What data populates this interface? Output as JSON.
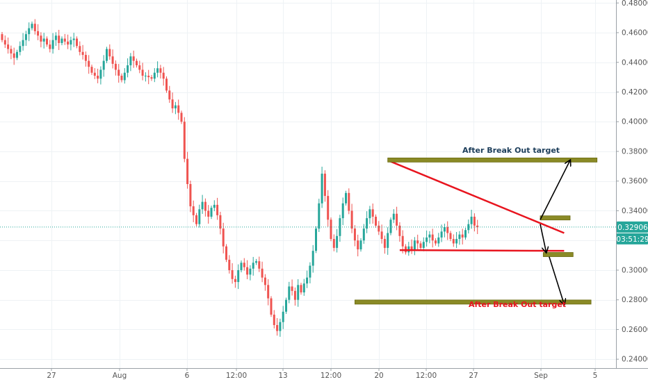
{
  "chart_data": {
    "type": "candlestick",
    "title": "",
    "xlabel": "",
    "ylabel": "",
    "ylim": [
      0.234,
      0.482
    ],
    "x_ticks": [
      "27",
      "Aug",
      "6",
      "12:00",
      "13",
      "12:00",
      "20",
      "12:00",
      "27",
      "Sep",
      "5"
    ],
    "y_ticks": [
      "0.48000",
      "0.46000",
      "0.44000",
      "0.42000",
      "0.40000",
      "0.38000",
      "0.36000",
      "0.34000",
      "0.32000",
      "0.30000",
      "0.28000",
      "0.26000",
      "0.24000"
    ],
    "current_price": {
      "value": 0.32906,
      "label": "0.32906",
      "countdown": "03:51:29"
    },
    "candles": [
      [
        0.459,
        0.455
      ],
      [
        0.455,
        0.452
      ],
      [
        0.452,
        0.449
      ],
      [
        0.449,
        0.446
      ],
      [
        0.446,
        0.443
      ],
      [
        0.443,
        0.447
      ],
      [
        0.447,
        0.451
      ],
      [
        0.451,
        0.455
      ],
      [
        0.455,
        0.459
      ],
      [
        0.459,
        0.463
      ],
      [
        0.463,
        0.466
      ],
      [
        0.466,
        0.461
      ],
      [
        0.461,
        0.458
      ],
      [
        0.458,
        0.454
      ],
      [
        0.454,
        0.456
      ],
      [
        0.456,
        0.452
      ],
      [
        0.452,
        0.449
      ],
      [
        0.449,
        0.455
      ],
      [
        0.455,
        0.458
      ],
      [
        0.458,
        0.453
      ],
      [
        0.453,
        0.456
      ],
      [
        0.456,
        0.454
      ],
      [
        0.454,
        0.452
      ],
      [
        0.452,
        0.455
      ],
      [
        0.455,
        0.456
      ],
      [
        0.456,
        0.451
      ],
      [
        0.451,
        0.447
      ],
      [
        0.447,
        0.445
      ],
      [
        0.445,
        0.441
      ],
      [
        0.441,
        0.437
      ],
      [
        0.437,
        0.433
      ],
      [
        0.433,
        0.431
      ],
      [
        0.431,
        0.429
      ],
      [
        0.429,
        0.435
      ],
      [
        0.435,
        0.441
      ],
      [
        0.441,
        0.449
      ],
      [
        0.449,
        0.444
      ],
      [
        0.444,
        0.439
      ],
      [
        0.439,
        0.435
      ],
      [
        0.435,
        0.431
      ],
      [
        0.431,
        0.428
      ],
      [
        0.428,
        0.433
      ],
      [
        0.433,
        0.438
      ],
      [
        0.438,
        0.444
      ],
      [
        0.444,
        0.441
      ],
      [
        0.441,
        0.438
      ],
      [
        0.438,
        0.435
      ],
      [
        0.435,
        0.431
      ],
      [
        0.431,
        0.431
      ],
      [
        0.431,
        0.43
      ],
      [
        0.43,
        0.429
      ],
      [
        0.429,
        0.433
      ],
      [
        0.433,
        0.436
      ],
      [
        0.436,
        0.433
      ],
      [
        0.433,
        0.429
      ],
      [
        0.429,
        0.421
      ],
      [
        0.421,
        0.415
      ],
      [
        0.415,
        0.409
      ],
      [
        0.409,
        0.411
      ],
      [
        0.411,
        0.406
      ],
      [
        0.406,
        0.4
      ],
      [
        0.4,
        0.375
      ],
      [
        0.375,
        0.358
      ],
      [
        0.358,
        0.343
      ],
      [
        0.343,
        0.337
      ],
      [
        0.337,
        0.331
      ],
      [
        0.331,
        0.341
      ],
      [
        0.341,
        0.346
      ],
      [
        0.346,
        0.34
      ],
      [
        0.34,
        0.336
      ],
      [
        0.336,
        0.342
      ],
      [
        0.342,
        0.344
      ],
      [
        0.344,
        0.337
      ],
      [
        0.337,
        0.328
      ],
      [
        0.328,
        0.316
      ],
      [
        0.316,
        0.307
      ],
      [
        0.307,
        0.3
      ],
      [
        0.3,
        0.294
      ],
      [
        0.294,
        0.292
      ],
      [
        0.292,
        0.3
      ],
      [
        0.3,
        0.305
      ],
      [
        0.305,
        0.302
      ],
      [
        0.302,
        0.297
      ],
      [
        0.297,
        0.301
      ],
      [
        0.301,
        0.305
      ],
      [
        0.305,
        0.306
      ],
      [
        0.306,
        0.301
      ],
      [
        0.301,
        0.295
      ],
      [
        0.295,
        0.29
      ],
      [
        0.29,
        0.281
      ],
      [
        0.281,
        0.27
      ],
      [
        0.27,
        0.263
      ],
      [
        0.263,
        0.259
      ],
      [
        0.259,
        0.265
      ],
      [
        0.265,
        0.272
      ],
      [
        0.272,
        0.28
      ],
      [
        0.28,
        0.289
      ],
      [
        0.289,
        0.286
      ],
      [
        0.286,
        0.28
      ],
      [
        0.28,
        0.29
      ],
      [
        0.29,
        0.285
      ],
      [
        0.285,
        0.291
      ],
      [
        0.291,
        0.295
      ],
      [
        0.295,
        0.303
      ],
      [
        0.303,
        0.313
      ],
      [
        0.313,
        0.328
      ],
      [
        0.328,
        0.345
      ],
      [
        0.345,
        0.365
      ],
      [
        0.365,
        0.35
      ],
      [
        0.35,
        0.334
      ],
      [
        0.334,
        0.321
      ],
      [
        0.321,
        0.315
      ],
      [
        0.315,
        0.323
      ],
      [
        0.323,
        0.335
      ],
      [
        0.335,
        0.345
      ],
      [
        0.345,
        0.352
      ],
      [
        0.352,
        0.34
      ],
      [
        0.34,
        0.328
      ],
      [
        0.328,
        0.32
      ],
      [
        0.32,
        0.314
      ],
      [
        0.314,
        0.32
      ],
      [
        0.32,
        0.328
      ],
      [
        0.328,
        0.335
      ],
      [
        0.335,
        0.341
      ],
      [
        0.341,
        0.336
      ],
      [
        0.336,
        0.33
      ],
      [
        0.33,
        0.326
      ],
      [
        0.326,
        0.321
      ],
      [
        0.321,
        0.315
      ],
      [
        0.315,
        0.325
      ],
      [
        0.325,
        0.334
      ],
      [
        0.334,
        0.338
      ],
      [
        0.338,
        0.33
      ],
      [
        0.33,
        0.323
      ],
      [
        0.323,
        0.316
      ],
      [
        0.316,
        0.312
      ],
      [
        0.312,
        0.316
      ],
      [
        0.316,
        0.314
      ],
      [
        0.314,
        0.32
      ],
      [
        0.32,
        0.318
      ],
      [
        0.318,
        0.315
      ],
      [
        0.315,
        0.319
      ],
      [
        0.319,
        0.322
      ],
      [
        0.322,
        0.324
      ],
      [
        0.324,
        0.32
      ],
      [
        0.32,
        0.318
      ],
      [
        0.318,
        0.322
      ],
      [
        0.322,
        0.326
      ],
      [
        0.326,
        0.329
      ],
      [
        0.329,
        0.325
      ],
      [
        0.325,
        0.321
      ],
      [
        0.321,
        0.318
      ],
      [
        0.318,
        0.321
      ],
      [
        0.321,
        0.324
      ],
      [
        0.324,
        0.322
      ],
      [
        0.322,
        0.327
      ],
      [
        0.327,
        0.331
      ],
      [
        0.331,
        0.336
      ],
      [
        0.336,
        0.33
      ],
      [
        0.33,
        0.329
      ]
    ],
    "annotations": [
      {
        "type": "trendline",
        "color": "#e8141e",
        "from": [
          129,
          0.374
        ],
        "to": [
          188,
          0.325
        ]
      },
      {
        "type": "trendline",
        "color": "#e8141e",
        "from": [
          133,
          0.3135
        ],
        "to": [
          188,
          0.313
        ]
      },
      {
        "type": "zone",
        "color": "#8a8a26",
        "from": [
          129,
          0.3742
        ],
        "to": [
          199,
          0.3742
        ]
      },
      {
        "type": "zone",
        "color": "#8a8a26",
        "from": [
          180,
          0.3352
        ],
        "to": [
          190,
          0.3352
        ]
      },
      {
        "type": "zone",
        "color": "#8a8a26",
        "from": [
          181,
          0.3105
        ],
        "to": [
          191,
          0.3105
        ]
      },
      {
        "type": "zone",
        "color": "#8a8a26",
        "from": [
          118,
          0.2785
        ],
        "to": [
          197,
          0.2785
        ]
      },
      {
        "type": "arrow",
        "from": [
          180,
          0.334
        ],
        "to": [
          190,
          0.374
        ]
      },
      {
        "type": "arrow",
        "from": [
          180,
          0.331
        ],
        "to": [
          182,
          0.312
        ]
      },
      {
        "type": "arrow",
        "from": [
          183,
          0.309
        ],
        "to": [
          188,
          0.277
        ]
      }
    ],
    "labels": [
      {
        "text": "After Break Out target",
        "color": "#1c3d5a"
      },
      {
        "text": "After Break Out target",
        "color": "#e8141e"
      }
    ],
    "colors": {
      "up": "#26a69a",
      "down": "#ef5350",
      "grid": "#eef2f5",
      "axis": "#555555",
      "price_tag": "#26a69a"
    }
  }
}
